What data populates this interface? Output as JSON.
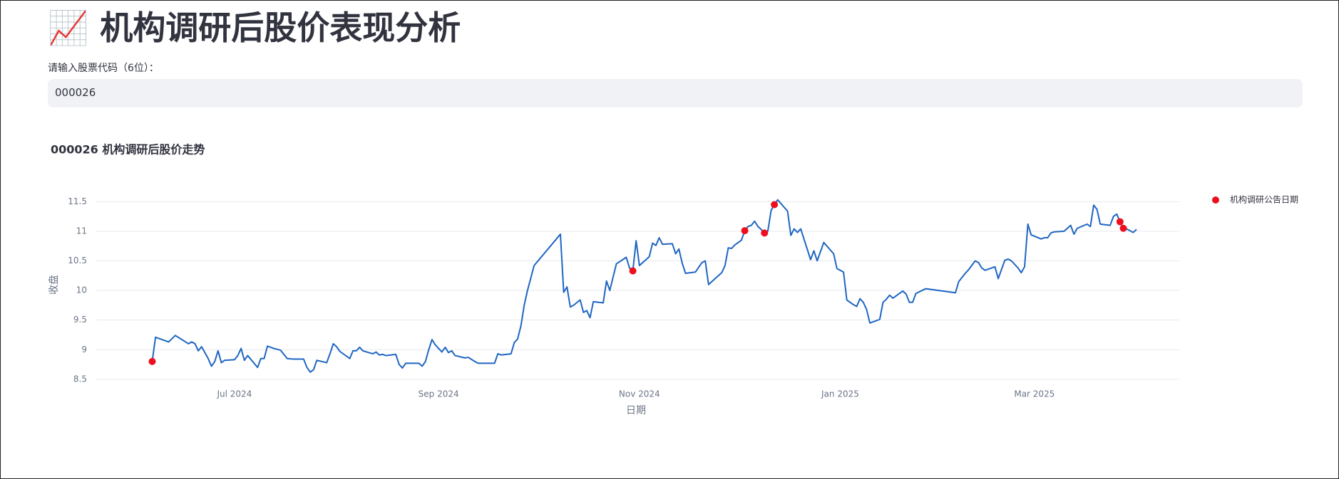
{
  "header": {
    "title": "📈 机构调研后股价表现分析"
  },
  "input": {
    "label": "请输入股票代码（6位）：",
    "value": "000026"
  },
  "chart_data": {
    "type": "line",
    "title": "000026 机构调研后股价走势",
    "x_label": "日期",
    "y_label": "收盘",
    "xlim": [
      "2024-05-20",
      "2025-04-14"
    ],
    "ylim": [
      8.45,
      11.6
    ],
    "xticks": [
      {
        "value": "2024-07-01",
        "label": "Jul 2024"
      },
      {
        "value": "2024-09-01",
        "label": "Sep 2024"
      },
      {
        "value": "2024-11-01",
        "label": "Nov 2024"
      },
      {
        "value": "2025-01-01",
        "label": "Jan 2025"
      },
      {
        "value": "2025-03-01",
        "label": "Mar 2025"
      }
    ],
    "yticks": [
      8.5,
      9,
      9.5,
      10,
      10.5,
      11,
      11.5
    ],
    "grid": true,
    "legend": "right",
    "series": [
      {
        "type": "line",
        "color": "#1f66c2",
        "x": [
          "2024-06-06",
          "2024-06-07",
          "2024-06-11",
          "2024-06-13",
          "2024-06-17",
          "2024-06-18",
          "2024-06-19",
          "2024-06-20",
          "2024-06-21",
          "2024-06-23",
          "2024-06-24",
          "2024-06-25",
          "2024-06-26",
          "2024-06-27",
          "2024-06-28",
          "2024-07-01",
          "2024-07-02",
          "2024-07-03",
          "2024-07-04",
          "2024-07-05",
          "2024-07-08",
          "2024-07-09",
          "2024-07-10",
          "2024-07-11",
          "2024-07-13",
          "2024-07-15",
          "2024-07-17",
          "2024-07-19",
          "2024-07-22",
          "2024-07-23",
          "2024-07-24",
          "2024-07-25",
          "2024-07-26",
          "2024-07-29",
          "2024-07-30",
          "2024-07-31",
          "2024-08-01",
          "2024-08-02",
          "2024-08-05",
          "2024-08-06",
          "2024-08-07",
          "2024-08-08",
          "2024-08-09",
          "2024-08-12",
          "2024-08-13",
          "2024-08-14",
          "2024-08-15",
          "2024-08-16",
          "2024-08-19",
          "2024-08-20",
          "2024-08-21",
          "2024-08-22",
          "2024-08-26",
          "2024-08-27",
          "2024-08-28",
          "2024-08-29",
          "2024-08-30",
          "2024-08-31",
          "2024-09-02",
          "2024-09-03",
          "2024-09-04",
          "2024-09-05",
          "2024-09-06",
          "2024-09-09",
          "2024-09-10",
          "2024-09-12",
          "2024-09-13",
          "2024-09-18",
          "2024-09-19",
          "2024-09-20",
          "2024-09-23",
          "2024-09-24",
          "2024-09-25",
          "2024-09-26",
          "2024-09-27",
          "2024-09-28",
          "2024-09-30",
          "2024-10-08",
          "2024-10-09",
          "2024-10-10",
          "2024-10-11",
          "2024-10-12",
          "2024-10-14",
          "2024-10-15",
          "2024-10-16",
          "2024-10-17",
          "2024-10-18",
          "2024-10-21",
          "2024-10-22",
          "2024-10-23",
          "2024-10-25",
          "2024-10-28",
          "2024-10-29",
          "2024-10-30",
          "2024-10-31",
          "2024-11-01",
          "2024-11-04",
          "2024-11-05",
          "2024-11-06",
          "2024-11-07",
          "2024-11-08",
          "2024-11-11",
          "2024-11-12",
          "2024-11-13",
          "2024-11-14",
          "2024-11-15",
          "2024-11-18",
          "2024-11-20",
          "2024-11-21",
          "2024-11-22",
          "2024-11-26",
          "2024-11-27",
          "2024-11-28",
          "2024-11-29",
          "2024-11-30",
          "2024-12-02",
          "2024-12-03",
          "2024-12-04",
          "2024-12-05",
          "2024-12-06",
          "2024-12-07",
          "2024-12-08",
          "2024-12-09",
          "2024-12-10",
          "2024-12-11",
          "2024-12-12",
          "2024-12-13",
          "2024-12-16",
          "2024-12-17",
          "2024-12-18",
          "2024-12-19",
          "2024-12-20",
          "2024-12-23",
          "2024-12-24",
          "2024-12-25",
          "2024-12-27",
          "2024-12-30",
          "2024-12-31",
          "2025-01-02",
          "2025-01-03",
          "2025-01-05",
          "2025-01-06",
          "2025-01-07",
          "2025-01-08",
          "2025-01-09",
          "2025-01-10",
          "2025-01-13",
          "2025-01-14",
          "2025-01-15",
          "2025-01-16",
          "2025-01-17",
          "2025-01-20",
          "2025-01-21",
          "2025-01-22",
          "2025-01-23",
          "2025-01-24",
          "2025-01-27",
          "2025-02-05",
          "2025-02-06",
          "2025-02-07",
          "2025-02-08",
          "2025-02-09",
          "2025-02-11",
          "2025-02-12",
          "2025-02-13",
          "2025-02-14",
          "2025-02-17",
          "2025-02-18",
          "2025-02-20",
          "2025-02-21",
          "2025-02-22",
          "2025-02-24",
          "2025-02-25",
          "2025-02-26",
          "2025-02-27",
          "2025-02-28",
          "2025-03-03",
          "2025-03-04",
          "2025-03-05",
          "2025-03-06",
          "2025-03-07",
          "2025-03-10",
          "2025-03-12",
          "2025-03-13",
          "2025-03-14",
          "2025-03-17",
          "2025-03-18",
          "2025-03-19",
          "2025-03-20",
          "2025-03-21",
          "2025-03-24",
          "2025-03-25",
          "2025-03-26",
          "2025-03-27",
          "2025-03-28",
          "2025-03-29",
          "2025-03-31",
          "2025-04-01"
        ],
        "values": [
          8.8,
          9.21,
          9.13,
          9.24,
          9.1,
          9.13,
          9.1,
          8.98,
          9.05,
          8.85,
          8.72,
          8.8,
          8.98,
          8.78,
          8.82,
          8.83,
          8.9,
          9.02,
          8.82,
          8.9,
          8.7,
          8.85,
          8.85,
          9.06,
          9.02,
          8.99,
          8.85,
          8.84,
          8.84,
          8.7,
          8.62,
          8.66,
          8.82,
          8.78,
          8.93,
          9.1,
          9.05,
          8.97,
          8.85,
          8.98,
          8.98,
          9.04,
          8.98,
          8.93,
          8.96,
          8.91,
          8.92,
          8.9,
          8.92,
          8.75,
          8.69,
          8.77,
          8.77,
          8.72,
          8.8,
          9.0,
          9.17,
          9.08,
          8.96,
          9.04,
          8.95,
          8.98,
          8.9,
          8.86,
          8.87,
          8.8,
          8.77,
          8.77,
          8.93,
          8.91,
          8.93,
          9.12,
          9.18,
          9.4,
          9.75,
          10.0,
          10.42,
          10.95,
          9.97,
          10.06,
          9.72,
          9.75,
          9.84,
          9.63,
          9.66,
          9.54,
          9.81,
          9.79,
          10.16,
          10.0,
          10.45,
          10.56,
          10.38,
          10.33,
          10.84,
          10.42,
          10.57,
          10.8,
          10.76,
          10.89,
          10.78,
          10.79,
          10.62,
          10.7,
          10.46,
          10.29,
          10.31,
          10.47,
          10.5,
          10.1,
          10.3,
          10.42,
          10.72,
          10.71,
          10.77,
          10.85,
          11.01,
          11.08,
          11.1,
          11.17,
          11.08,
          11.03,
          10.97,
          11.0,
          11.35,
          11.45,
          11.53,
          11.34,
          10.93,
          11.04,
          10.98,
          11.04,
          10.52,
          10.67,
          10.5,
          10.81,
          10.62,
          10.37,
          10.31,
          9.84,
          9.76,
          9.73,
          9.86,
          9.8,
          9.68,
          9.45,
          9.51,
          9.8,
          9.85,
          9.92,
          9.87,
          9.99,
          9.94,
          9.8,
          9.8,
          9.95,
          10.03,
          9.96,
          10.15,
          10.22,
          10.29,
          10.35,
          10.5,
          10.47,
          10.38,
          10.34,
          10.4,
          10.2,
          10.51,
          10.53,
          10.5,
          10.38,
          10.3,
          10.4,
          11.12,
          10.94,
          10.87,
          10.89,
          10.89,
          10.97,
          10.99,
          11.0,
          11.1,
          10.95,
          11.05,
          11.12,
          11.08,
          11.44,
          11.37,
          11.12,
          11.1,
          11.25,
          11.29,
          11.16,
          11.05,
          11.04,
          10.98,
          11.03
        ]
      },
      {
        "type": "scatter",
        "name": "机构调研公告日期",
        "color": "#ee0f1e",
        "x": [
          "2024-06-06",
          "2024-10-30",
          "2024-12-03",
          "2024-12-09",
          "2024-12-12",
          "2025-03-27",
          "2025-03-28"
        ],
        "values": [
          8.8,
          10.33,
          11.01,
          10.97,
          11.45,
          11.16,
          11.05
        ]
      }
    ]
  }
}
